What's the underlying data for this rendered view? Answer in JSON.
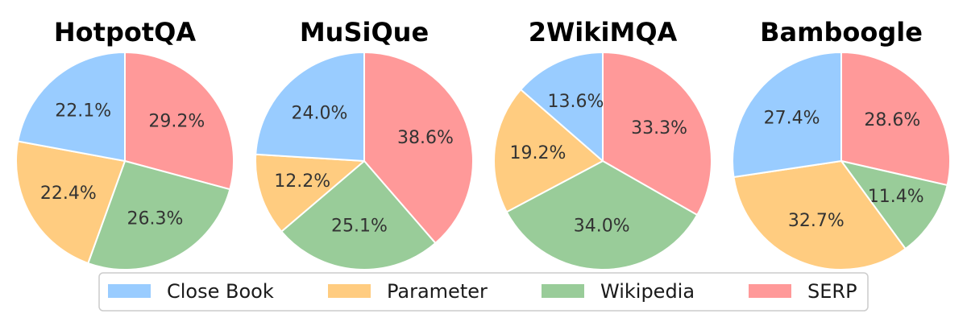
{
  "chart_data": {
    "type": "pie",
    "legend": {
      "placement": "bottom-center",
      "entries": [
        "Close Book",
        "Parameter",
        "Wikipedia",
        "SERP"
      ]
    },
    "colors": {
      "Close Book": "#99ccff",
      "Parameter": "#ffcc80",
      "Wikipedia": "#99cc99",
      "SERP": "#ff9999"
    },
    "charts": [
      {
        "title": "HotpotQA",
        "slices": [
          {
            "label": "SERP",
            "value": 29.2,
            "text": "29.2%"
          },
          {
            "label": "Wikipedia",
            "value": 26.3,
            "text": "26.3%"
          },
          {
            "label": "Parameter",
            "value": 22.4,
            "text": "22.4%"
          },
          {
            "label": "Close Book",
            "value": 22.1,
            "text": "22.1%"
          }
        ]
      },
      {
        "title": "MuSiQue",
        "slices": [
          {
            "label": "SERP",
            "value": 38.6,
            "text": "38.6%"
          },
          {
            "label": "Wikipedia",
            "value": 25.1,
            "text": "25.1%"
          },
          {
            "label": "Parameter",
            "value": 12.2,
            "text": "12.2%"
          },
          {
            "label": "Close Book",
            "value": 24.0,
            "text": "24.0%"
          }
        ]
      },
      {
        "title": "2WikiMQA",
        "slices": [
          {
            "label": "SERP",
            "value": 33.3,
            "text": "33.3%"
          },
          {
            "label": "Wikipedia",
            "value": 34.0,
            "text": "34.0%"
          },
          {
            "label": "Parameter",
            "value": 19.2,
            "text": "19.2%"
          },
          {
            "label": "Close Book",
            "value": 13.6,
            "text": "13.6%"
          }
        ]
      },
      {
        "title": "Bamboogle",
        "slices": [
          {
            "label": "SERP",
            "value": 28.6,
            "text": "28.6%"
          },
          {
            "label": "Wikipedia",
            "value": 11.4,
            "text": "11.4%"
          },
          {
            "label": "Parameter",
            "value": 32.7,
            "text": "32.7%"
          },
          {
            "label": "Close Book",
            "value": 27.4,
            "text": "27.4%"
          }
        ]
      }
    ]
  }
}
